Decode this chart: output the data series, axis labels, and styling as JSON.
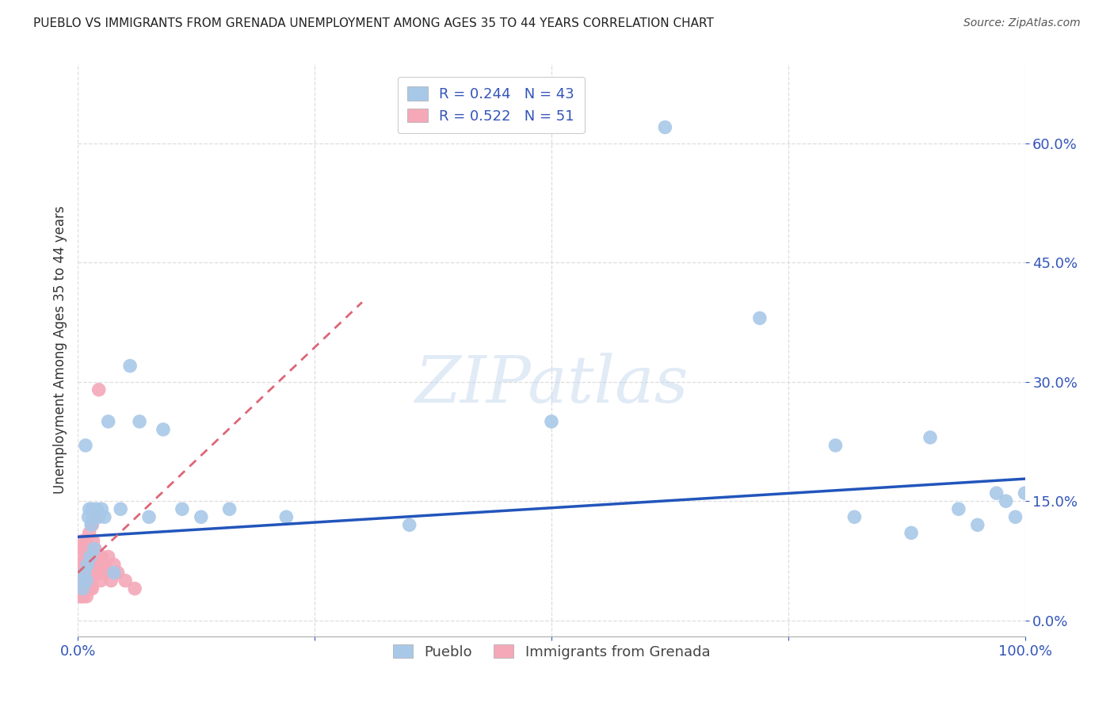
{
  "title": "PUEBLO VS IMMIGRANTS FROM GRENADA UNEMPLOYMENT AMONG AGES 35 TO 44 YEARS CORRELATION CHART",
  "source": "Source: ZipAtlas.com",
  "ylabel": "Unemployment Among Ages 35 to 44 years",
  "xlim": [
    0.0,
    1.0
  ],
  "ylim": [
    -0.02,
    0.7
  ],
  "ytick_vals": [
    0.0,
    0.15,
    0.3,
    0.45,
    0.6
  ],
  "xtick_vals": [
    0.0,
    1.0
  ],
  "watermark": "ZIPatlas",
  "legend_pueblo_label": "Pueblo",
  "legend_grenada_label": "Immigrants from Grenada",
  "pueblo_R": "0.244",
  "pueblo_N": "43",
  "grenada_R": "0.522",
  "grenada_N": "51",
  "pueblo_color": "#a8c8e8",
  "grenada_color": "#f4a8b8",
  "pueblo_line_color": "#2255bb",
  "grenada_line_color": "#dd6677",
  "axis_tick_color": "#3355bb",
  "title_color": "#222222",
  "background_color": "#ffffff",
  "grid_color": "#dddddd",
  "pueblo_x": [
    0.003,
    0.005,
    0.007,
    0.008,
    0.009,
    0.01,
    0.011,
    0.012,
    0.013,
    0.014,
    0.015,
    0.016,
    0.017,
    0.018,
    0.02,
    0.022,
    0.025,
    0.028,
    0.032,
    0.038,
    0.045,
    0.055,
    0.065,
    0.075,
    0.09,
    0.11,
    0.13,
    0.16,
    0.22,
    0.35,
    0.5,
    0.62,
    0.72,
    0.8,
    0.82,
    0.88,
    0.9,
    0.93,
    0.95,
    0.97,
    0.98,
    0.99,
    1.0
  ],
  "pueblo_y": [
    0.05,
    0.04,
    0.06,
    0.22,
    0.05,
    0.07,
    0.13,
    0.14,
    0.08,
    0.12,
    0.14,
    0.13,
    0.09,
    0.13,
    0.14,
    0.13,
    0.14,
    0.13,
    0.25,
    0.06,
    0.14,
    0.32,
    0.25,
    0.13,
    0.24,
    0.14,
    0.13,
    0.14,
    0.13,
    0.12,
    0.25,
    0.62,
    0.38,
    0.22,
    0.13,
    0.11,
    0.23,
    0.14,
    0.12,
    0.16,
    0.15,
    0.13,
    0.16
  ],
  "grenada_x": [
    0.001,
    0.002,
    0.002,
    0.003,
    0.003,
    0.004,
    0.004,
    0.005,
    0.005,
    0.005,
    0.006,
    0.006,
    0.006,
    0.007,
    0.007,
    0.008,
    0.008,
    0.009,
    0.009,
    0.01,
    0.01,
    0.011,
    0.011,
    0.012,
    0.012,
    0.013,
    0.013,
    0.014,
    0.014,
    0.015,
    0.015,
    0.016,
    0.016,
    0.017,
    0.018,
    0.019,
    0.02,
    0.021,
    0.022,
    0.023,
    0.024,
    0.025,
    0.026,
    0.028,
    0.03,
    0.032,
    0.035,
    0.038,
    0.042,
    0.05,
    0.06
  ],
  "grenada_y": [
    0.04,
    0.03,
    0.07,
    0.05,
    0.09,
    0.04,
    0.06,
    0.03,
    0.07,
    0.1,
    0.04,
    0.06,
    0.09,
    0.05,
    0.08,
    0.04,
    0.07,
    0.03,
    0.1,
    0.05,
    0.08,
    0.04,
    0.09,
    0.05,
    0.11,
    0.04,
    0.07,
    0.05,
    0.09,
    0.12,
    0.04,
    0.06,
    0.1,
    0.07,
    0.09,
    0.13,
    0.08,
    0.06,
    0.29,
    0.07,
    0.05,
    0.08,
    0.06,
    0.07,
    0.06,
    0.08,
    0.05,
    0.07,
    0.06,
    0.05,
    0.04
  ],
  "pueblo_line_x": [
    0.0,
    1.0
  ],
  "pueblo_line_y": [
    0.105,
    0.178
  ],
  "grenada_line_x": [
    0.0,
    0.3
  ],
  "grenada_line_y": [
    0.06,
    0.4
  ]
}
